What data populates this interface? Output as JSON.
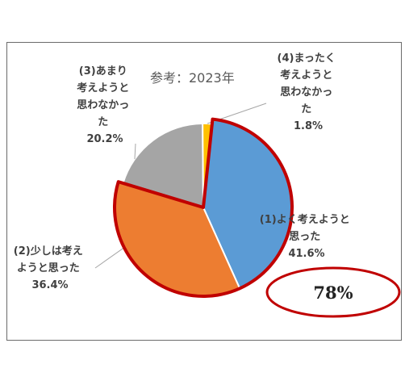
{
  "chart_data": {
    "type": "pie",
    "reference_note": "参考：2023年",
    "slices": [
      {
        "label": [
          "(1)よく考えようと",
          "思った"
        ],
        "value_text": "41.6%",
        "value": 41.6,
        "color": "#5b9bd5"
      },
      {
        "label": [
          "(2)少しは考え",
          "ようと思った"
        ],
        "value_text": "36.4%",
        "value": 36.4,
        "color": "#ed7d31"
      },
      {
        "label": [
          "(3)あまり",
          "考えようと",
          "思わなかっ",
          "た"
        ],
        "value_text": "20.2%",
        "value": 20.2,
        "color": "#a5a5a5"
      },
      {
        "label": [
          "(4)まったく",
          "考えようと",
          "思わなかっ",
          "た"
        ],
        "value_text": "1.8%",
        "value": 1.8,
        "color": "#ffc000"
      }
    ],
    "highlight": {
      "combined_slices": [
        0,
        1
      ],
      "callout": "78%",
      "outline_color": "#c00000"
    }
  }
}
